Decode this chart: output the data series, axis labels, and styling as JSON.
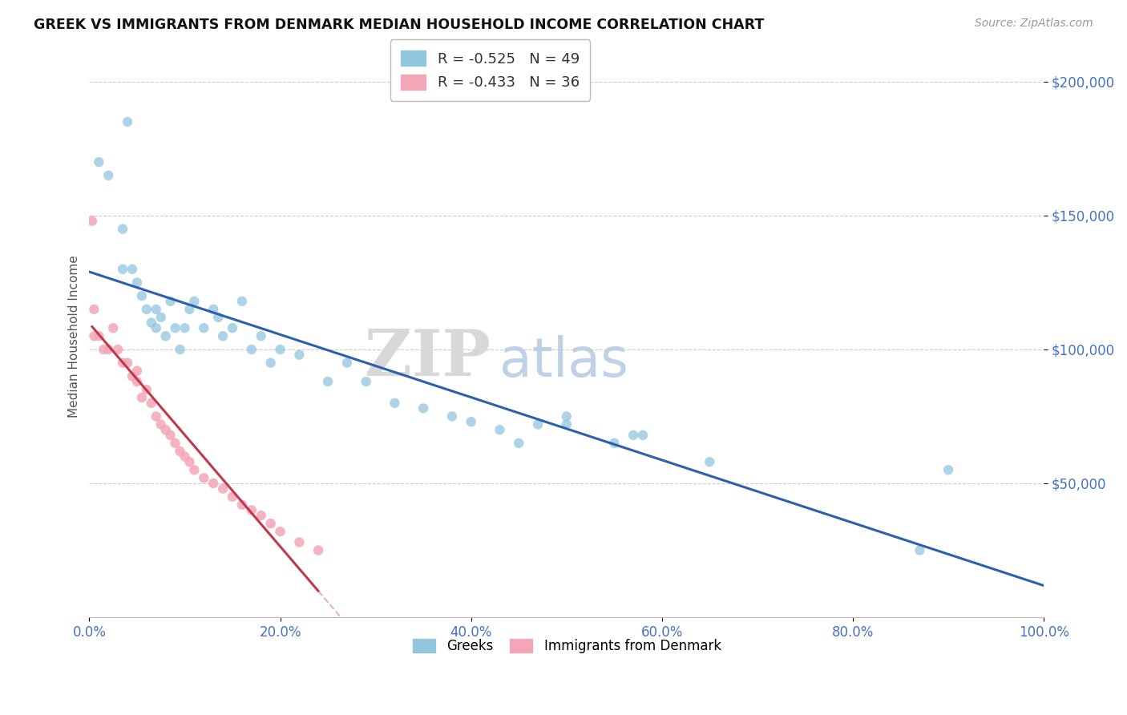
{
  "title": "GREEK VS IMMIGRANTS FROM DENMARK MEDIAN HOUSEHOLD INCOME CORRELATION CHART",
  "source": "Source: ZipAtlas.com",
  "ylabel": "Median Household Income",
  "background_color": "#ffffff",
  "legend_r1": "R = -0.525",
  "legend_n1": "N = 49",
  "legend_r2": "R = -0.433",
  "legend_n2": "N = 36",
  "blue_color": "#92c5de",
  "pink_color": "#f4a6b8",
  "blue_line_color": "#2c5fad",
  "pink_line_color": "#c0384b",
  "pink_dash_color": "#d4799a",
  "greeks_x": [
    1.0,
    2.0,
    3.5,
    3.5,
    4.0,
    4.5,
    5.0,
    5.5,
    6.0,
    6.5,
    7.0,
    7.0,
    7.5,
    8.0,
    8.5,
    9.0,
    9.5,
    10.0,
    10.5,
    11.0,
    12.0,
    13.0,
    13.5,
    14.0,
    15.0,
    16.0,
    17.0,
    18.0,
    19.0,
    20.0,
    22.0,
    25.0,
    27.0,
    29.0,
    32.0,
    35.0,
    38.0,
    40.0,
    43.0,
    45.0,
    47.0,
    50.0,
    55.0,
    57.0,
    58.0,
    65.0,
    87.0,
    90.0,
    50.0
  ],
  "greeks_y": [
    170000,
    165000,
    145000,
    130000,
    185000,
    130000,
    125000,
    120000,
    115000,
    110000,
    115000,
    108000,
    112000,
    105000,
    118000,
    108000,
    100000,
    108000,
    115000,
    118000,
    108000,
    115000,
    112000,
    105000,
    108000,
    118000,
    100000,
    105000,
    95000,
    100000,
    98000,
    88000,
    95000,
    88000,
    80000,
    78000,
    75000,
    73000,
    70000,
    65000,
    72000,
    75000,
    65000,
    68000,
    68000,
    58000,
    25000,
    55000,
    72000
  ],
  "denmark_x": [
    0.5,
    0.5,
    1.0,
    1.5,
    2.0,
    2.5,
    3.0,
    3.5,
    4.0,
    4.5,
    5.0,
    5.0,
    5.5,
    6.0,
    6.5,
    7.0,
    7.5,
    8.0,
    8.5,
    9.0,
    9.5,
    10.0,
    10.5,
    11.0,
    12.0,
    13.0,
    14.0,
    15.0,
    16.0,
    17.0,
    18.0,
    19.0,
    20.0,
    22.0,
    24.0,
    0.3
  ],
  "denmark_y": [
    115000,
    105000,
    105000,
    100000,
    100000,
    108000,
    100000,
    95000,
    95000,
    90000,
    88000,
    92000,
    82000,
    85000,
    80000,
    75000,
    72000,
    70000,
    68000,
    65000,
    62000,
    60000,
    58000,
    55000,
    52000,
    50000,
    48000,
    45000,
    42000,
    40000,
    38000,
    35000,
    32000,
    28000,
    25000,
    148000
  ],
  "ylim": [
    0,
    210000
  ],
  "xlim": [
    0,
    100
  ],
  "yticks": [
    50000,
    100000,
    150000,
    200000
  ],
  "ytick_labels": [
    "$50,000",
    "$100,000",
    "$150,000",
    "$200,000"
  ],
  "xticks": [
    0,
    20,
    40,
    60,
    80,
    100
  ],
  "xtick_labels": [
    "0.0%",
    "20.0%",
    "40.0%",
    "60.0%",
    "80.0%",
    "100.0%"
  ],
  "grid_color": "#cccccc",
  "title_color": "#111111",
  "axis_label_color": "#555555",
  "tick_color": "#4472c4",
  "marker_size": 80
}
